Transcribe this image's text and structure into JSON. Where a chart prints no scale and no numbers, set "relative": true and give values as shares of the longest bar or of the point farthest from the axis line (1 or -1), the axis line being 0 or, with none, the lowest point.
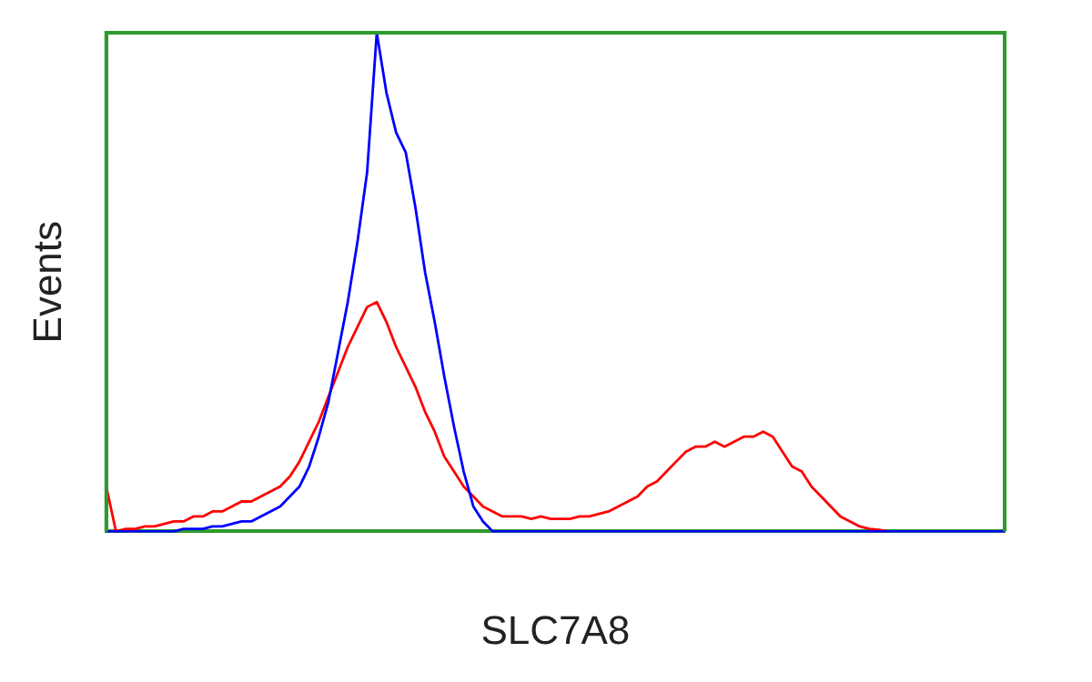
{
  "chart_data": {
    "type": "line",
    "xlabel": "SLC7A8",
    "ylabel": "Events",
    "relative": true,
    "grid": false,
    "legend": false,
    "marker": "none",
    "line_style": "solid",
    "categories": [
      null,
      null,
      null,
      null,
      null,
      null,
      null,
      null,
      null,
      null,
      null,
      null,
      null,
      null,
      null,
      null,
      null,
      null,
      null,
      null,
      null,
      null,
      null,
      null,
      null,
      null,
      null,
      null,
      null,
      null,
      null,
      null,
      null,
      null,
      null,
      null,
      null,
      null,
      null,
      null,
      null,
      null,
      null,
      null,
      null,
      null,
      null,
      null,
      null,
      null,
      null,
      null,
      null,
      null,
      null,
      null,
      null,
      null,
      null,
      null,
      null,
      null,
      null,
      null,
      null,
      null,
      null,
      null,
      null,
      null,
      null,
      null,
      null,
      null,
      null,
      null,
      null,
      null,
      null,
      null,
      null,
      null,
      null,
      null,
      null,
      null,
      null,
      null,
      null,
      null,
      null,
      null,
      null,
      null
    ],
    "series": [
      {
        "color": "#0000ff",
        "values": [
          0,
          0,
          0,
          0,
          0,
          0,
          0,
          0,
          0.005,
          0.005,
          0.005,
          0.01,
          0.01,
          0.015,
          0.02,
          0.02,
          0.03,
          0.04,
          0.05,
          0.07,
          0.09,
          0.13,
          0.19,
          0.26,
          0.36,
          0.46,
          0.58,
          0.72,
          1,
          0.88,
          0.8,
          0.76,
          0.65,
          0.52,
          0.42,
          0.31,
          0.21,
          0.12,
          0.05,
          0.02,
          0,
          0,
          0,
          0,
          0,
          0,
          0,
          0,
          0,
          0,
          0,
          0,
          0,
          0,
          0,
          0,
          0,
          0,
          0,
          0,
          0,
          0,
          0,
          0,
          0,
          0,
          0,
          0,
          0,
          0,
          0,
          0,
          0,
          0,
          0,
          0,
          0,
          0,
          0,
          0,
          0,
          0,
          0,
          0,
          0,
          0,
          0,
          0,
          0,
          0,
          0,
          0,
          0,
          0
        ]
      },
      {
        "color": "#ff0000",
        "values": [
          0.09,
          0,
          0.005,
          0.005,
          0.01,
          0.01,
          0.015,
          0.02,
          0.02,
          0.03,
          0.03,
          0.04,
          0.04,
          0.05,
          0.06,
          0.06,
          0.07,
          0.08,
          0.09,
          0.11,
          0.14,
          0.18,
          0.22,
          0.27,
          0.32,
          0.37,
          0.41,
          0.45,
          0.46,
          0.42,
          0.37,
          0.33,
          0.29,
          0.24,
          0.2,
          0.15,
          0.12,
          0.09,
          0.07,
          0.05,
          0.04,
          0.03,
          0.03,
          0.03,
          0.025,
          0.03,
          0.025,
          0.025,
          0.025,
          0.03,
          0.03,
          0.035,
          0.04,
          0.05,
          0.06,
          0.07,
          0.09,
          0.1,
          0.12,
          0.14,
          0.16,
          0.17,
          0.17,
          0.18,
          0.17,
          0.18,
          0.19,
          0.19,
          0.2,
          0.19,
          0.16,
          0.13,
          0.12,
          0.09,
          0.07,
          0.05,
          0.03,
          0.02,
          0.01,
          0.005,
          0.003,
          0,
          null,
          null,
          null,
          null,
          null,
          null,
          null,
          null,
          null,
          null,
          null,
          null
        ]
      }
    ]
  }
}
